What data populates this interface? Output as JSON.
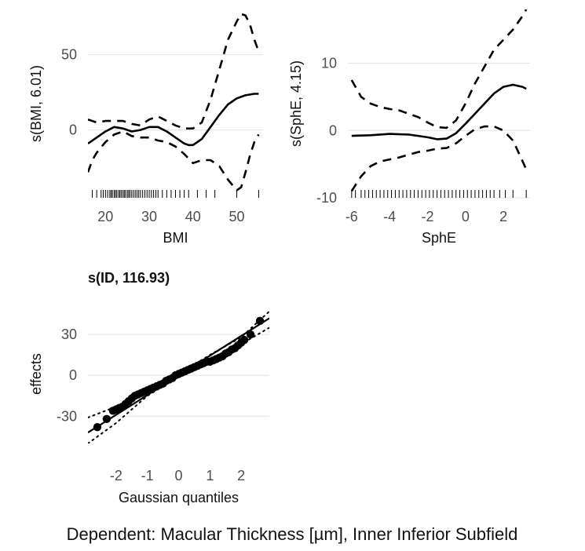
{
  "caption": "Dependent: Macular Thickness [µm], Inner Inferior Subfield",
  "chart_data": [
    {
      "type": "line",
      "title": "",
      "xlabel": "BMI",
      "ylabel": "s(BMI, 6.01)",
      "xlim": [
        16,
        56
      ],
      "ylim": [
        -45,
        80
      ],
      "xticks": [
        20,
        30,
        40,
        50
      ],
      "yticks": [
        0,
        50
      ],
      "grid": true,
      "series": [
        {
          "role": "estimate",
          "linestyle": "solid",
          "x": [
            16,
            18,
            20,
            22,
            24,
            26,
            28,
            30,
            32,
            34,
            36,
            38,
            39,
            40,
            42,
            44,
            46,
            48,
            50,
            52,
            54,
            55
          ],
          "y": [
            -9,
            -5,
            -1,
            2,
            1,
            -1,
            0,
            2,
            2,
            -1,
            -5,
            -9,
            -10,
            -10,
            -6,
            2,
            10,
            17,
            21,
            23,
            24,
            24
          ]
        },
        {
          "role": "upper",
          "linestyle": "dashed",
          "x": [
            16,
            18,
            20,
            22,
            24,
            26,
            28,
            30,
            32,
            34,
            36,
            38,
            40,
            42,
            44,
            46,
            48,
            50,
            51,
            52,
            53,
            54,
            55
          ],
          "y": [
            7,
            5,
            6,
            6,
            6,
            4,
            3,
            7,
            9,
            6,
            3,
            1,
            1,
            5,
            20,
            40,
            60,
            72,
            77,
            76,
            70,
            60,
            52
          ]
        },
        {
          "role": "lower",
          "linestyle": "dashed",
          "x": [
            16,
            17,
            18,
            20,
            22,
            24,
            26,
            28,
            30,
            32,
            34,
            36,
            38,
            40,
            42,
            44,
            46,
            48,
            50,
            51,
            52,
            53,
            54,
            55
          ],
          "y": [
            -28,
            -20,
            -15,
            -8,
            -3,
            -1,
            -4,
            -5,
            -5,
            -7,
            -8,
            -11,
            -16,
            -22,
            -20,
            -20,
            -24,
            -33,
            -40,
            -38,
            -28,
            -17,
            -8,
            -3
          ]
        }
      ],
      "rug": [
        17,
        18,
        19,
        19.5,
        20,
        20.5,
        21,
        21.3,
        21.6,
        22,
        22.3,
        22.6,
        23,
        23.3,
        23.6,
        24,
        24.3,
        24.6,
        25,
        25.3,
        25.6,
        26,
        26.4,
        26.8,
        27.2,
        27.6,
        28,
        28.5,
        29,
        29.5,
        30,
        30.5,
        31,
        31.5,
        32,
        33,
        34,
        35,
        36,
        37,
        38,
        39,
        41,
        43,
        45,
        50,
        55
      ]
    },
    {
      "type": "line",
      "title": "",
      "xlabel": "SphE",
      "ylabel": "s(SphE, 4.15)",
      "xlim": [
        -6.2,
        3.4
      ],
      "ylim": [
        -10,
        18
      ],
      "xticks": [
        -6,
        -4,
        -2,
        0,
        2
      ],
      "yticks": [
        -10,
        0,
        10
      ],
      "grid": true,
      "series": [
        {
          "role": "estimate",
          "linestyle": "solid",
          "x": [
            -6,
            -5,
            -4,
            -3,
            -2,
            -1.5,
            -1,
            -0.5,
            0,
            0.5,
            1,
            1.5,
            2,
            2.5,
            3,
            3.2
          ],
          "y": [
            -0.8,
            -0.7,
            -0.5,
            -0.6,
            -1,
            -1.3,
            -1.2,
            -0.4,
            1,
            2.5,
            4,
            5.5,
            6.5,
            6.8,
            6.5,
            6.2
          ]
        },
        {
          "role": "upper",
          "linestyle": "dashed",
          "x": [
            -6,
            -5.5,
            -5,
            -4.5,
            -4,
            -3.5,
            -3,
            -2.5,
            -2,
            -1.5,
            -1,
            -0.5,
            0,
            0.5,
            1,
            1.5,
            2,
            2.5,
            3,
            3.2
          ],
          "y": [
            7.5,
            5,
            4,
            3.5,
            3.2,
            3,
            2.5,
            2,
            1.2,
            0.5,
            0.4,
            1.5,
            4,
            7,
            9.5,
            12,
            13.5,
            15,
            17,
            18
          ]
        },
        {
          "role": "lower",
          "linestyle": "dashed",
          "x": [
            -6,
            -5.5,
            -5,
            -4.5,
            -4,
            -3.5,
            -3,
            -2.5,
            -2,
            -1.5,
            -1,
            -0.5,
            0,
            0.5,
            1,
            1.5,
            2,
            2.5,
            3,
            3.2
          ],
          "y": [
            -9,
            -6.8,
            -5.3,
            -4.6,
            -4.3,
            -4,
            -3.6,
            -3.2,
            -3,
            -2.7,
            -2.6,
            -1.9,
            -0.8,
            0.2,
            0.6,
            0.6,
            0,
            -1.5,
            -4.5,
            -5.8
          ]
        }
      ],
      "rug": [
        -6,
        -5.8,
        -5.5,
        -5.3,
        -5.1,
        -4.9,
        -4.7,
        -4.5,
        -4.3,
        -4.1,
        -3.9,
        -3.7,
        -3.5,
        -3.3,
        -3.1,
        -2.9,
        -2.7,
        -2.5,
        -2.3,
        -2.1,
        -1.9,
        -1.7,
        -1.5,
        -1.3,
        -1.1,
        -0.9,
        -0.7,
        -0.5,
        -0.3,
        -0.1,
        0.1,
        0.3,
        0.5,
        0.7,
        0.9,
        1.1,
        1.3,
        1.5,
        1.8,
        2.1,
        2.5,
        3.2
      ]
    },
    {
      "type": "scatter",
      "title": "s(ID, 116.93)",
      "xlabel": "Gaussian quantiles",
      "ylabel": "effects",
      "xlim": [
        -2.9,
        2.9
      ],
      "ylim": [
        -50,
        52
      ],
      "xticks": [
        -2,
        -1,
        0,
        1,
        2
      ],
      "yticks": [
        -30,
        0,
        30
      ],
      "grid": true,
      "reference_line": {
        "x": [
          -2.9,
          2.9
        ],
        "y": [
          -42,
          42
        ]
      },
      "confidence_band": {
        "upper": {
          "x": [
            -2.9,
            -2,
            -1,
            0,
            1,
            2,
            2.9
          ],
          "y": [
            -31,
            -23,
            -12,
            1,
            15,
            28,
            47
          ]
        },
        "lower": {
          "x": [
            -2.9,
            -2,
            -1,
            0,
            1,
            2,
            2.9
          ],
          "y": [
            -50,
            -35,
            -15,
            -1,
            11,
            23,
            35
          ]
        }
      },
      "points": {
        "x": [
          -2.6,
          -2.3,
          -2.1,
          -2.0,
          -1.9,
          -1.8,
          -1.7,
          -1.6,
          -1.5,
          -1.4,
          -1.3,
          -1.2,
          -1.1,
          -1.0,
          -0.9,
          -0.8,
          -0.7,
          -0.6,
          -0.5,
          -0.4,
          -0.3,
          -0.2,
          -0.1,
          0.0,
          0.1,
          0.2,
          0.3,
          0.4,
          0.5,
          0.6,
          0.7,
          0.8,
          0.9,
          1.0,
          1.1,
          1.2,
          1.3,
          1.4,
          1.5,
          1.6,
          1.7,
          1.8,
          1.9,
          2.0,
          2.1,
          2.3,
          2.6
        ],
        "y": [
          -38,
          -32,
          -26,
          -25,
          -24,
          -23,
          -21,
          -19,
          -17,
          -15,
          -14,
          -13,
          -12,
          -11,
          -10,
          -9,
          -8,
          -7,
          -6,
          -4,
          -3,
          -2,
          0,
          1,
          2,
          3,
          4,
          5,
          6,
          7,
          8,
          9,
          10,
          10,
          11,
          12,
          13,
          14,
          16,
          17,
          19,
          20,
          22,
          24,
          26,
          30,
          40
        ]
      }
    }
  ]
}
